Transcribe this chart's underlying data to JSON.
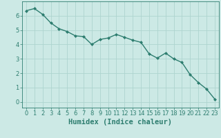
{
  "x": [
    0,
    1,
    2,
    3,
    4,
    5,
    6,
    7,
    8,
    9,
    10,
    11,
    12,
    13,
    14,
    15,
    16,
    17,
    18,
    19,
    20,
    21,
    22,
    23
  ],
  "y": [
    6.35,
    6.5,
    6.1,
    5.5,
    5.1,
    4.9,
    4.6,
    4.55,
    4.0,
    4.35,
    4.45,
    4.7,
    4.5,
    4.3,
    4.15,
    3.35,
    3.05,
    3.4,
    3.0,
    2.75,
    1.9,
    1.35,
    0.9,
    0.2
  ],
  "line_color": "#2d7d6f",
  "marker": "D",
  "marker_size": 2.0,
  "line_width": 1.0,
  "bg_color": "#cce9e5",
  "grid_color_major": "#aed4cf",
  "grid_color_minor": "#c2deda",
  "xlabel": "Humidex (Indice chaleur)",
  "xlabel_fontsize": 7.5,
  "tick_fontsize": 6.0,
  "ylim": [
    -0.4,
    7.0
  ],
  "xlim": [
    -0.5,
    23.5
  ],
  "yticks": [
    0,
    1,
    2,
    3,
    4,
    5,
    6
  ],
  "xticks": [
    0,
    1,
    2,
    3,
    4,
    5,
    6,
    7,
    8,
    9,
    10,
    11,
    12,
    13,
    14,
    15,
    16,
    17,
    18,
    19,
    20,
    21,
    22,
    23
  ],
  "spine_color": "#2d7d6f",
  "bottom_bg": "#b8d4d0"
}
